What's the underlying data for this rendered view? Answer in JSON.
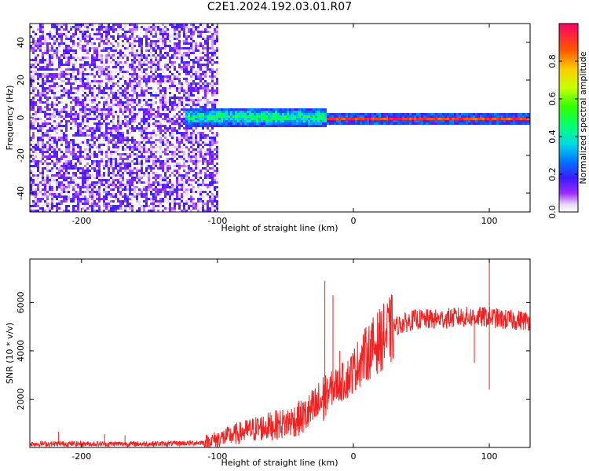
{
  "title": "C2E1.2024.192.03.01.R07",
  "colors": {
    "snr_line": "#ee2222",
    "axes": "#000000"
  },
  "chart_data": [
    {
      "type": "heatmap",
      "name": "spectrogram",
      "xlabel": "Height of straight line (km)",
      "ylabel": "Frequency (Hz)",
      "xlim": [
        -238,
        130
      ],
      "ylim": [
        -50,
        50
      ],
      "xticks": [
        -200,
        -100,
        0,
        100
      ],
      "xtick_labels": [
        "-200",
        "-100",
        "0",
        "100"
      ],
      "yticks": [
        -40,
        -20,
        0,
        20,
        40
      ],
      "ytick_labels": [
        "-40",
        "-20",
        "0",
        "20",
        "40"
      ],
      "colorbar": {
        "label": "Normalized spectral amplitude",
        "range": [
          0,
          1
        ],
        "ticks": [
          0.0,
          0.2,
          0.4,
          0.6,
          0.8
        ],
        "tick_labels": [
          "0.0",
          "0.2",
          "0.4",
          "0.6",
          "0.8"
        ]
      },
      "regions": [
        {
          "x_range": [
            -238,
            -100
          ],
          "description": "broadband noise",
          "freq_spread": 50,
          "amplitude": 0.2
        },
        {
          "x_range": [
            -125,
            -20
          ],
          "description": "signal band",
          "freq_center": 1,
          "freq_spread": 5,
          "amplitude": 0.55
        },
        {
          "x_range": [
            -20,
            130
          ],
          "description": "narrow carrier",
          "freq_center": 0,
          "freq_spread": 1,
          "amplitude": 0.9
        }
      ]
    },
    {
      "type": "line",
      "name": "snr",
      "xlabel": "Height of straight line (km)",
      "ylabel": "SNR (10 * v/v)",
      "xlim": [
        -238,
        130
      ],
      "ylim": [
        0,
        7800
      ],
      "xticks": [
        -200,
        -100,
        0,
        100
      ],
      "xtick_labels": [
        "-200",
        "-100",
        "0",
        "100"
      ],
      "yticks": [
        2000,
        4000,
        6000
      ],
      "ytick_labels": [
        "2000",
        "4000",
        "6000"
      ],
      "trend": {
        "x": [
          -238,
          -140,
          -110,
          -90,
          -70,
          -50,
          -35,
          -25,
          -15,
          -5,
          5,
          15,
          30,
          45,
          60,
          80,
          100,
          110,
          130
        ],
        "y": [
          150,
          150,
          200,
          500,
          800,
          1000,
          1300,
          1800,
          2500,
          2800,
          3600,
          4200,
          5000,
          5300,
          5300,
          5400,
          5400,
          5300,
          5250
        ]
      },
      "spikes": [
        {
          "x": -217,
          "y": 650
        },
        {
          "x": -183,
          "y": 550
        },
        {
          "x": -168,
          "y": 500
        },
        {
          "x": -21,
          "y": 6900
        },
        {
          "x": -15,
          "y": 6300
        },
        {
          "x": -10,
          "y": 4000
        },
        {
          "x": 100,
          "y": 7800
        },
        {
          "x": 100,
          "y": 2400
        },
        {
          "x": 89,
          "y": 3500
        }
      ]
    }
  ]
}
